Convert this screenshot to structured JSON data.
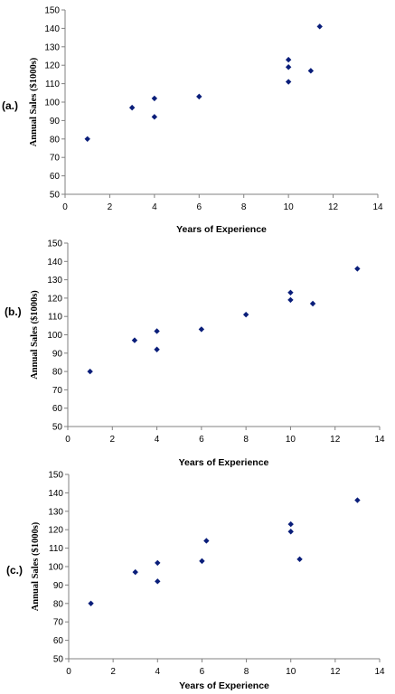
{
  "chart_data": [
    {
      "type": "scatter",
      "panel_label": "(a.)",
      "xlabel": "Years of Experience",
      "ylabel": "Annual Sales ($1000s)",
      "xlim": [
        0,
        14
      ],
      "ylim": [
        50,
        150
      ],
      "x_ticks": [
        0,
        2,
        4,
        6,
        8,
        10,
        12,
        14
      ],
      "y_ticks": [
        50,
        60,
        70,
        80,
        90,
        100,
        110,
        120,
        130,
        140,
        150
      ],
      "grid": false,
      "marker_color": "#0a1e7a",
      "points": [
        {
          "x": 1,
          "y": 80
        },
        {
          "x": 3,
          "y": 97
        },
        {
          "x": 4,
          "y": 92
        },
        {
          "x": 4,
          "y": 102
        },
        {
          "x": 6,
          "y": 103
        },
        {
          "x": 10,
          "y": 111
        },
        {
          "x": 10,
          "y": 119
        },
        {
          "x": 10,
          "y": 123
        },
        {
          "x": 11,
          "y": 117
        },
        {
          "x": 11.4,
          "y": 141
        }
      ]
    },
    {
      "type": "scatter",
      "panel_label": "(b.)",
      "xlabel": "Years of Experience",
      "ylabel": "Annual Sales ($1000s)",
      "xlim": [
        0,
        14
      ],
      "ylim": [
        50,
        150
      ],
      "x_ticks": [
        0,
        2,
        4,
        6,
        8,
        10,
        12,
        14
      ],
      "y_ticks": [
        50,
        60,
        70,
        80,
        90,
        100,
        110,
        120,
        130,
        140,
        150
      ],
      "grid": false,
      "marker_color": "#0a1e7a",
      "points": [
        {
          "x": 1,
          "y": 80
        },
        {
          "x": 3,
          "y": 97
        },
        {
          "x": 4,
          "y": 92
        },
        {
          "x": 4,
          "y": 102
        },
        {
          "x": 6,
          "y": 103
        },
        {
          "x": 8,
          "y": 111
        },
        {
          "x": 10,
          "y": 119
        },
        {
          "x": 10,
          "y": 123
        },
        {
          "x": 11,
          "y": 117
        },
        {
          "x": 13,
          "y": 136
        }
      ]
    },
    {
      "type": "scatter",
      "panel_label": "(c.)",
      "xlabel": "Years of Experience",
      "ylabel": "Annual Sales ($1000s)",
      "xlim": [
        0,
        14
      ],
      "ylim": [
        50,
        150
      ],
      "x_ticks": [
        0,
        2,
        4,
        6,
        8,
        10,
        12,
        14
      ],
      "y_ticks": [
        50,
        60,
        70,
        80,
        90,
        100,
        110,
        120,
        130,
        140,
        150
      ],
      "grid": false,
      "marker_color": "#0a1e7a",
      "points": [
        {
          "x": 1,
          "y": 80
        },
        {
          "x": 3,
          "y": 97
        },
        {
          "x": 4,
          "y": 92
        },
        {
          "x": 4,
          "y": 102
        },
        {
          "x": 6,
          "y": 103
        },
        {
          "x": 6.2,
          "y": 114
        },
        {
          "x": 10,
          "y": 119
        },
        {
          "x": 10,
          "y": 123
        },
        {
          "x": 10.4,
          "y": 104
        },
        {
          "x": 13,
          "y": 136
        }
      ]
    }
  ]
}
